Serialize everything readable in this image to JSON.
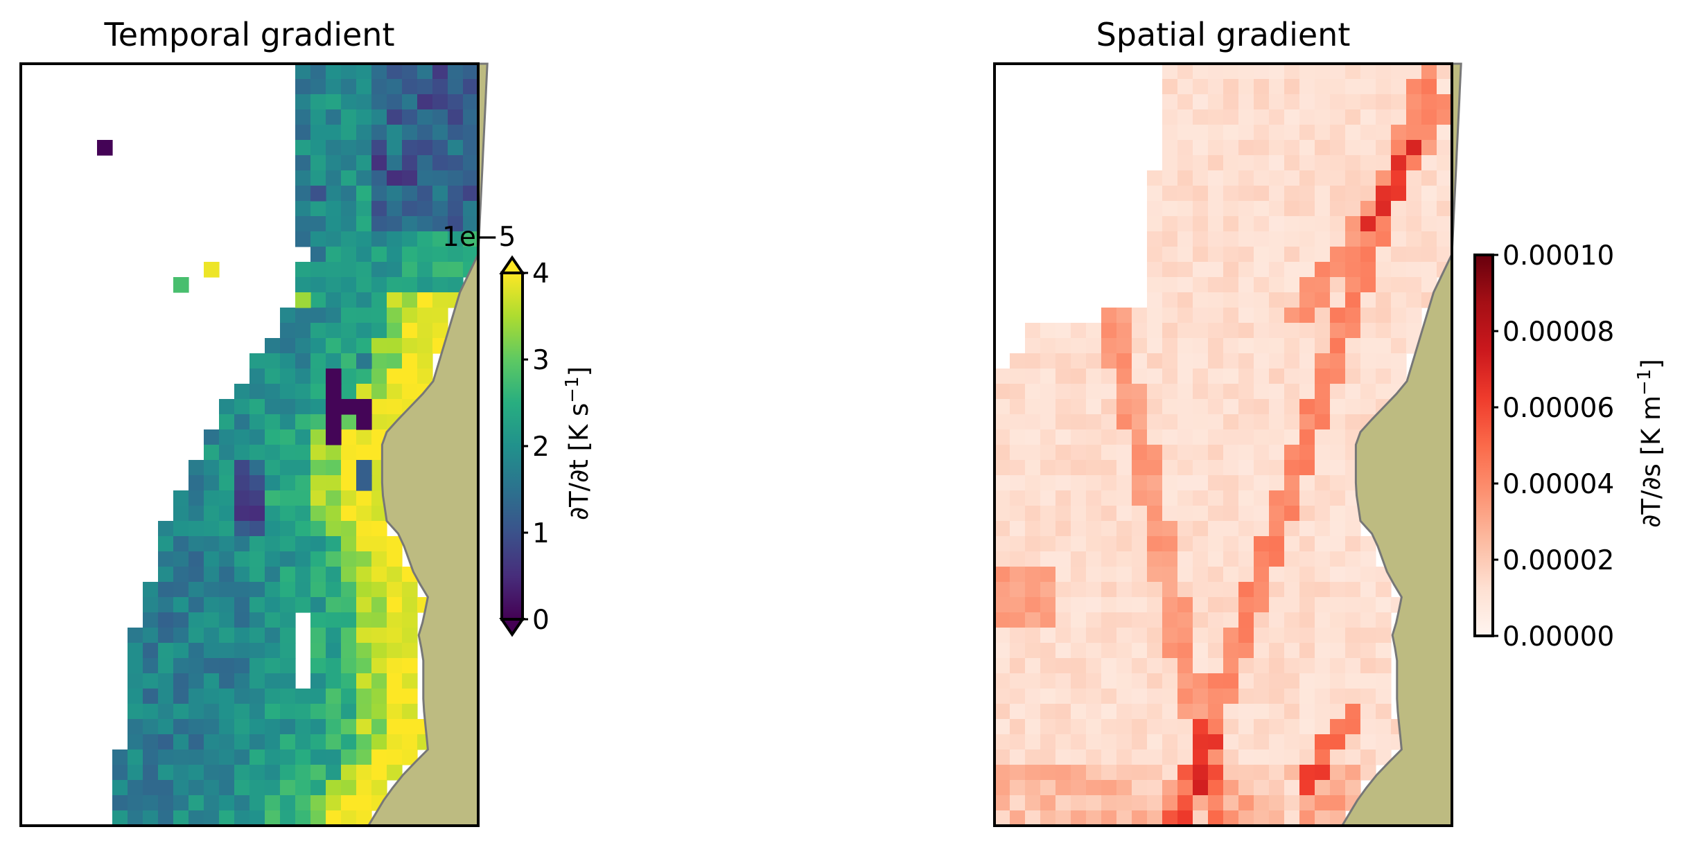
{
  "chart_data": [
    {
      "type": "heatmap",
      "title": "Temporal gradient",
      "colormap": "viridis",
      "grid": false,
      "axes_ticks": false,
      "missing_color": "#ffffff",
      "land_color": "#bdbb81",
      "coast_color": "#777777",
      "colorbar": {
        "label": "∂T/∂t [K s",
        "label_unit_exponent": "−1",
        "label_end": "]",
        "offset_text": "1e−5",
        "min": 0,
        "max": 4,
        "extend": "both",
        "ticks": [
          "0",
          "1",
          "2",
          "3",
          "4"
        ],
        "tick_values": [
          0,
          1,
          2,
          3,
          4
        ],
        "placement": "right"
      }
    },
    {
      "type": "heatmap",
      "title": "Spatial gradient",
      "colormap": "Reds",
      "grid": false,
      "axes_ticks": false,
      "missing_color": "#ffffff",
      "land_color": "#bdbb81",
      "coast_color": "#777777",
      "colorbar": {
        "label": "∂T/∂s [K m",
        "label_unit_exponent": "−1",
        "label_end": "]",
        "min": 0,
        "max": 0.0001,
        "extend": "neither",
        "ticks": [
          "0.00000",
          "0.00002",
          "0.00004",
          "0.00006",
          "0.00008",
          "0.00010"
        ],
        "tick_values": [
          0,
          2e-05,
          4e-05,
          6e-05,
          8e-05,
          0.0001
        ],
        "placement": "right"
      }
    }
  ]
}
